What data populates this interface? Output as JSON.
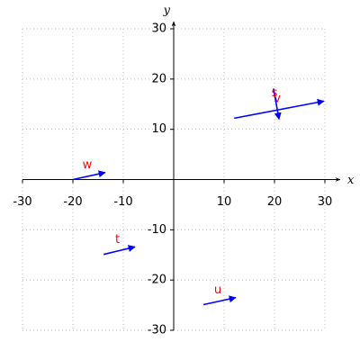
{
  "chart_data": {
    "type": "vector",
    "x_label": "x",
    "y_label": "y",
    "xlim": [
      -30,
      30
    ],
    "ylim": [
      -30,
      30
    ],
    "xticks": [
      -30,
      -20,
      -10,
      10,
      20,
      30
    ],
    "yticks": [
      -30,
      -20,
      -10,
      10,
      20,
      30
    ],
    "grid": true,
    "color": "#0000ff",
    "label_color": "#ff0000",
    "vectors": [
      {
        "name": "w",
        "x": -20,
        "y": 0,
        "u": 6.4,
        "v": 1.4
      },
      {
        "name": "t",
        "x": -13.9,
        "y": -14.9,
        "u": 6.2,
        "v": 1.5
      },
      {
        "name": "u",
        "x": 5.9,
        "y": -24.9,
        "u": 6.4,
        "v": 1.4
      },
      {
        "name": "v",
        "x": 12,
        "y": 12.2,
        "u": 17.8,
        "v": 3.4
      },
      {
        "name": "s",
        "x": 19.8,
        "y": 18.1,
        "u": 1.1,
        "v": -6.1
      }
    ]
  }
}
